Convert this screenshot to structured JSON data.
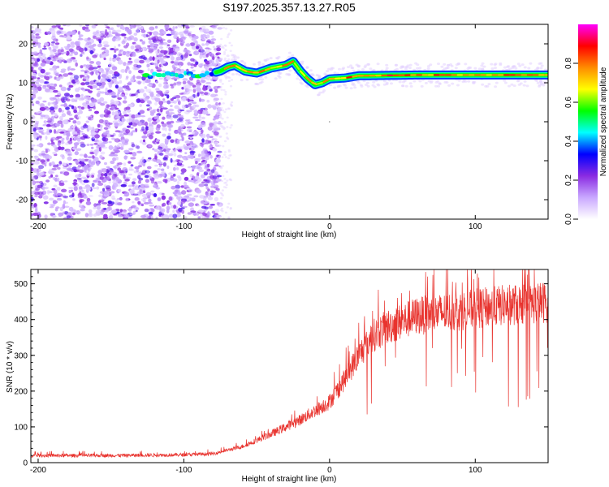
{
  "title": "S197.2025.357.13.27.R05",
  "chart_data": [
    {
      "type": "heatmap",
      "name": "spectrogram",
      "xlabel": "Height of straight line (km)",
      "ylabel": "Frequency (Hz)",
      "xlim": [
        -205,
        150
      ],
      "ylim": [
        -25,
        25
      ],
      "xticks": [
        -200,
        -100,
        0,
        100
      ],
      "xtick_labels": [
        "-200",
        "-100",
        "0",
        "100"
      ],
      "yticks": [
        20,
        10,
        0,
        -10,
        -20
      ],
      "ytick_labels": [
        "20",
        "10",
        "0",
        "-10",
        "-20"
      ],
      "noise_region_x": [
        -205,
        -75
      ],
      "ridge": [
        {
          "x": -125,
          "f": 11.8
        },
        {
          "x": -110,
          "f": 12.0
        },
        {
          "x": -100,
          "f": 12.2
        },
        {
          "x": -90,
          "f": 12.0
        },
        {
          "x": -80,
          "f": 12.5
        },
        {
          "x": -75,
          "f": 13.0
        },
        {
          "x": -70,
          "f": 14.0
        },
        {
          "x": -65,
          "f": 14.5
        },
        {
          "x": -58,
          "f": 13.0
        },
        {
          "x": -50,
          "f": 12.5
        },
        {
          "x": -40,
          "f": 13.8
        },
        {
          "x": -30,
          "f": 14.5
        },
        {
          "x": -25,
          "f": 15.5
        },
        {
          "x": -20,
          "f": 13.0
        },
        {
          "x": -15,
          "f": 11.0
        },
        {
          "x": -10,
          "f": 9.5
        },
        {
          "x": -5,
          "f": 10.0
        },
        {
          "x": 0,
          "f": 11.0
        },
        {
          "x": 10,
          "f": 11.2
        },
        {
          "x": 20,
          "f": 11.8
        },
        {
          "x": 60,
          "f": 12.0
        },
        {
          "x": 100,
          "f": 12.0
        },
        {
          "x": 150,
          "f": 12.0
        }
      ],
      "colorbar": {
        "label": "Normalized spectral amplitude",
        "range": [
          0,
          1
        ],
        "ticks": [
          0.0,
          0.2,
          0.4,
          0.6,
          0.8
        ],
        "tick_labels": [
          "0.0",
          "0.2",
          "0.4",
          "0.6",
          "0.8"
        ],
        "colors": [
          "#ffffff",
          "#c9a8ff",
          "#8a2be2",
          "#0000ff",
          "#00ffff",
          "#00ff00",
          "#ffff00",
          "#ff8c00",
          "#ff0000",
          "#ff00ff"
        ]
      }
    },
    {
      "type": "line",
      "name": "snr",
      "xlabel": "Height of straight line (km)",
      "ylabel": "SNR (10 * v/v)",
      "xlim": [
        -205,
        150
      ],
      "ylim": [
        0,
        540
      ],
      "xticks": [
        -200,
        -100,
        0,
        100
      ],
      "xtick_labels": [
        "-200",
        "-100",
        "0",
        "100"
      ],
      "yticks": [
        0,
        100,
        200,
        300,
        400,
        500
      ],
      "ytick_labels": [
        "0",
        "100",
        "200",
        "300",
        "400",
        "500"
      ],
      "series": [
        {
          "name": "SNR",
          "color": "#e8332e",
          "trend": [
            {
              "x": -205,
              "y": 20
            },
            {
              "x": -150,
              "y": 20
            },
            {
              "x": -100,
              "y": 22
            },
            {
              "x": -80,
              "y": 25
            },
            {
              "x": -60,
              "y": 45
            },
            {
              "x": -40,
              "y": 80
            },
            {
              "x": -20,
              "y": 120
            },
            {
              "x": 0,
              "y": 170
            },
            {
              "x": 10,
              "y": 230
            },
            {
              "x": 20,
              "y": 300
            },
            {
              "x": 30,
              "y": 355
            },
            {
              "x": 40,
              "y": 380
            },
            {
              "x": 60,
              "y": 410
            },
            {
              "x": 80,
              "y": 420
            },
            {
              "x": 100,
              "y": 430
            },
            {
              "x": 120,
              "y": 440
            },
            {
              "x": 140,
              "y": 445
            },
            {
              "x": 150,
              "y": 450
            }
          ]
        }
      ]
    }
  ]
}
